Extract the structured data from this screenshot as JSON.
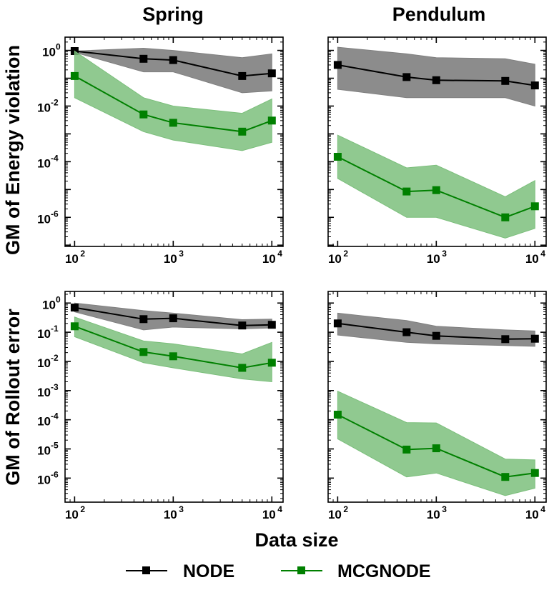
{
  "chart_data": {
    "type": "line",
    "xlabel": "Data size",
    "columns": [
      "Spring",
      "Pendulum"
    ],
    "rows": [
      "GM of Energy violation",
      "GM of Rollout error"
    ],
    "legend": [
      {
        "name": "NODE",
        "color": "#000000"
      },
      {
        "name": "MCGNODE",
        "color": "#008000"
      }
    ],
    "colors": {
      "node_line": "#000000",
      "node_fill": "#808080",
      "mcg_line": "#008000",
      "mcg_fill": "#7cbf7c"
    },
    "panels": [
      {
        "id": "energy-spring",
        "row": "GM of Energy violation",
        "column": "Spring",
        "xscale": "log",
        "yscale": "log",
        "xlim": [
          80,
          13000
        ],
        "ylim": [
          9e-08,
          3
        ],
        "x_ticks": [
          {
            "base": "10",
            "exp": "2",
            "value": 100
          },
          {
            "base": "10",
            "exp": "3",
            "value": 1000
          },
          {
            "base": "10",
            "exp": "4",
            "value": 10000
          }
        ],
        "y_ticks": [
          {
            "base": "10",
            "exp": "0",
            "value": 1
          },
          {
            "base": "10",
            "exp": "-2",
            "value": 0.01
          },
          {
            "base": "10",
            "exp": "-4",
            "value": 0.0001
          },
          {
            "base": "10",
            "exp": "-6",
            "value": 1e-06
          }
        ],
        "series": [
          {
            "name": "NODE",
            "x": [
              100,
              500,
              1000,
              5000,
              10000
            ],
            "y": [
              0.95,
              0.5,
              0.45,
              0.12,
              0.15
            ],
            "lower": [
              0.85,
              0.17,
              0.17,
              0.03,
              0.035
            ],
            "upper": [
              0.95,
              1.2,
              1.0,
              0.55,
              0.75
            ]
          },
          {
            "name": "MCGNODE",
            "x": [
              100,
              500,
              1000,
              5000,
              10000
            ],
            "y": [
              0.12,
              0.005,
              0.0025,
              0.0012,
              0.003
            ],
            "lower": [
              0.02,
              0.0012,
              0.0006,
              0.00025,
              0.0005
            ],
            "upper": [
              0.95,
              0.02,
              0.01,
              0.0055,
              0.018
            ]
          }
        ]
      },
      {
        "id": "energy-pendulum",
        "row": "GM of Energy violation",
        "column": "Pendulum",
        "xscale": "log",
        "yscale": "log",
        "xlim": [
          80,
          13000
        ],
        "ylim": [
          9e-08,
          3
        ],
        "x_ticks": [
          {
            "base": "10",
            "exp": "2",
            "value": 100
          },
          {
            "base": "10",
            "exp": "3",
            "value": 1000
          },
          {
            "base": "10",
            "exp": "4",
            "value": 10000
          }
        ],
        "y_ticks": [
          {
            "base": "",
            "exp": "",
            "value": 1
          },
          {
            "base": "",
            "exp": "",
            "value": 0.01
          },
          {
            "base": "",
            "exp": "",
            "value": 0.0001
          },
          {
            "base": "",
            "exp": "",
            "value": 1e-06
          }
        ],
        "series": [
          {
            "name": "NODE",
            "x": [
              100,
              500,
              1000,
              5000,
              10000
            ],
            "y": [
              0.3,
              0.11,
              0.085,
              0.08,
              0.055
            ],
            "lower": [
              0.04,
              0.02,
              0.02,
              0.02,
              0.01
            ],
            "upper": [
              1.3,
              0.75,
              0.55,
              0.5,
              0.32
            ]
          },
          {
            "name": "MCGNODE",
            "x": [
              100,
              500,
              1000,
              5000,
              10000
            ],
            "y": [
              0.00015,
              8.5e-06,
              9.5e-06,
              1e-06,
              2.5e-06
            ],
            "lower": [
              2.5e-05,
              1e-06,
              1e-06,
              1.8e-07,
              4e-07
            ],
            "upper": [
              0.0009,
              6e-05,
              7.5e-05,
              5.5e-06,
              2.1e-05
            ]
          }
        ]
      },
      {
        "id": "rollout-spring",
        "row": "GM of Rollout error",
        "column": "Spring",
        "xscale": "log",
        "yscale": "log",
        "xlim": [
          80,
          13000
        ],
        "ylim": [
          1.5e-07,
          2.5
        ],
        "x_ticks": [
          {
            "base": "10",
            "exp": "2",
            "value": 100
          },
          {
            "base": "10",
            "exp": "3",
            "value": 1000
          },
          {
            "base": "10",
            "exp": "4",
            "value": 10000
          }
        ],
        "y_ticks": [
          {
            "base": "10",
            "exp": "0",
            "value": 1
          },
          {
            "base": "10",
            "exp": "-1",
            "value": 0.1
          },
          {
            "base": "10",
            "exp": "-2",
            "value": 0.01
          },
          {
            "base": "10",
            "exp": "-3",
            "value": 0.001
          },
          {
            "base": "10",
            "exp": "-4",
            "value": 0.0001
          },
          {
            "base": "10",
            "exp": "-5",
            "value": 1e-05
          },
          {
            "base": "10",
            "exp": "-6",
            "value": 1e-06
          }
        ],
        "series": [
          {
            "name": "NODE",
            "x": [
              100,
              500,
              1000,
              5000,
              10000
            ],
            "y": [
              0.7,
              0.28,
              0.3,
              0.17,
              0.18
            ],
            "lower": [
              0.5,
              0.12,
              0.15,
              0.13,
              0.14
            ],
            "upper": [
              1.0,
              0.55,
              0.45,
              0.27,
              0.28
            ]
          },
          {
            "name": "MCGNODE",
            "x": [
              100,
              500,
              1000,
              5000,
              10000
            ],
            "y": [
              0.16,
              0.021,
              0.015,
              0.006,
              0.009
            ],
            "lower": [
              0.07,
              0.009,
              0.006,
              0.0025,
              0.002
            ],
            "upper": [
              0.33,
              0.05,
              0.04,
              0.018,
              0.045
            ]
          }
        ]
      },
      {
        "id": "rollout-pendulum",
        "row": "GM of Rollout error",
        "column": "Pendulum",
        "xscale": "log",
        "yscale": "log",
        "xlim": [
          80,
          13000
        ],
        "ylim": [
          1.5e-07,
          2.5
        ],
        "x_ticks": [
          {
            "base": "10",
            "exp": "2",
            "value": 100
          },
          {
            "base": "10",
            "exp": "3",
            "value": 1000
          },
          {
            "base": "10",
            "exp": "4",
            "value": 10000
          }
        ],
        "y_ticks": [
          {
            "base": "",
            "exp": "",
            "value": 1
          },
          {
            "base": "",
            "exp": "",
            "value": 0.1
          },
          {
            "base": "",
            "exp": "",
            "value": 0.01
          },
          {
            "base": "",
            "exp": "",
            "value": 0.001
          },
          {
            "base": "",
            "exp": "",
            "value": 0.0001
          },
          {
            "base": "",
            "exp": "",
            "value": 1e-05
          },
          {
            "base": "",
            "exp": "",
            "value": 1e-06
          }
        ],
        "series": [
          {
            "name": "NODE",
            "x": [
              100,
              500,
              1000,
              5000,
              10000
            ],
            "y": [
              0.2,
              0.1,
              0.075,
              0.058,
              0.06
            ],
            "lower": [
              0.08,
              0.045,
              0.04,
              0.035,
              0.033
            ],
            "upper": [
              0.45,
              0.25,
              0.16,
              0.12,
              0.11
            ]
          },
          {
            "name": "MCGNODE",
            "x": [
              100,
              500,
              1000,
              5000,
              10000
            ],
            "y": [
              0.00015,
              9.5e-06,
              1.05e-05,
              1.1e-06,
              1.5e-06
            ],
            "lower": [
              2.2e-05,
              1.1e-06,
              1.5e-06,
              2.5e-07,
              4.5e-07
            ],
            "upper": [
              0.00095,
              8e-05,
              7.8e-05,
              4.5e-06,
              4.2e-06
            ]
          }
        ]
      }
    ]
  }
}
